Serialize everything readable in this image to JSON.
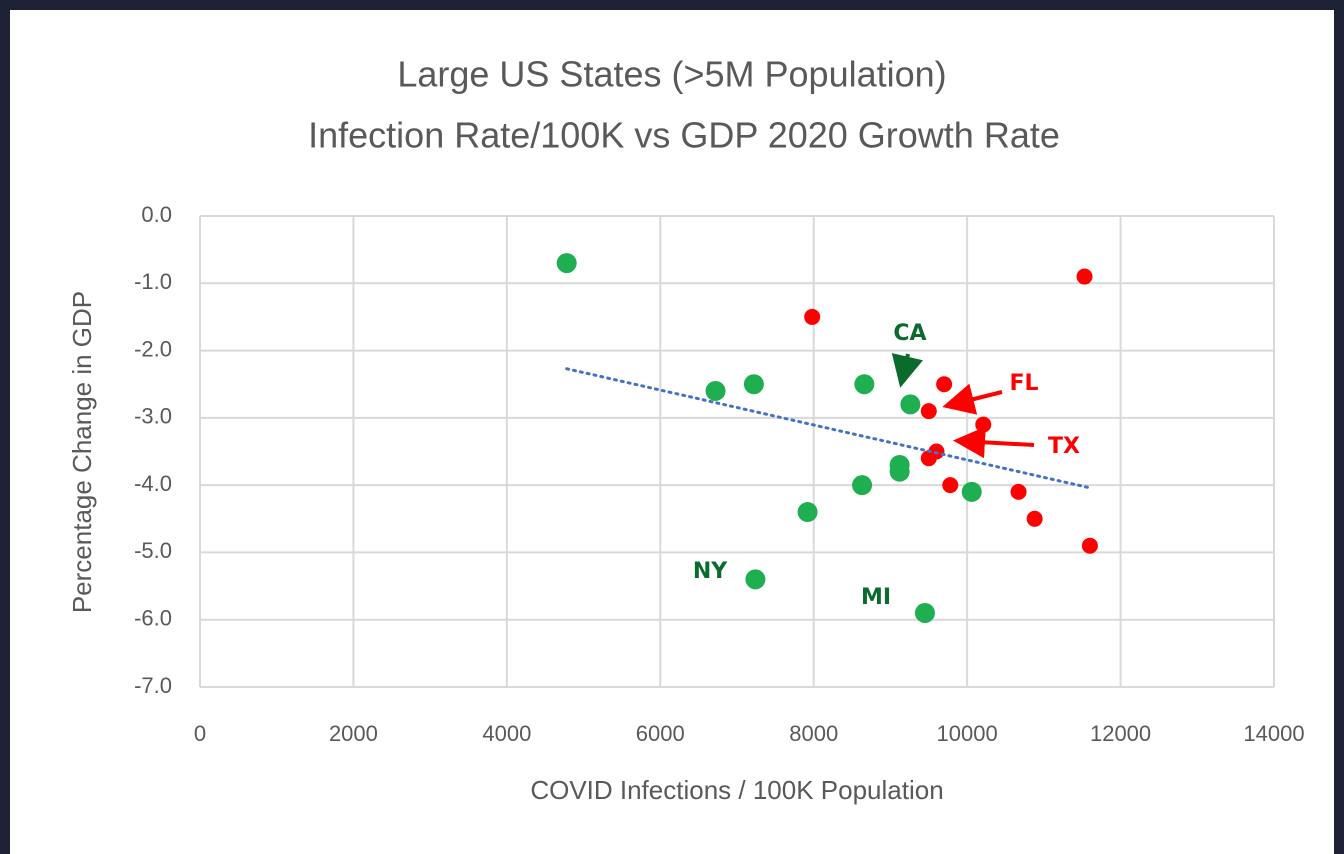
{
  "chart_data": {
    "type": "scatter",
    "title": [
      "Large US States (>5M Population)",
      "Infection Rate/100K vs GDP 2020 Growth Rate"
    ],
    "x_label": "COVID Infections / 100K Population",
    "y_label": "Percentage Change in GDP",
    "xlim": [
      0,
      14000
    ],
    "xticks": [
      0,
      2000,
      4000,
      6000,
      8000,
      10000,
      12000,
      14000
    ],
    "ylim": [
      -7,
      0
    ],
    "yticks": [
      {
        "value": 0,
        "label": "0.0"
      },
      {
        "value": -1,
        "label": "-1.0"
      },
      {
        "value": -2,
        "label": "-2.0"
      },
      {
        "value": -3,
        "label": "-3.0"
      },
      {
        "value": -4,
        "label": "-4.0"
      },
      {
        "value": -5,
        "label": "-5.0"
      },
      {
        "value": -6,
        "label": "-6.0"
      },
      {
        "value": -7,
        "label": "-7.0"
      }
    ],
    "grid": true,
    "series": [
      {
        "color": "#1fae50",
        "x": [
          4780,
          6720,
          7220,
          8660,
          9260,
          9120,
          9120,
          8630,
          7920,
          7240,
          9450,
          10060
        ],
        "values": [
          -0.7,
          -2.6,
          -2.5,
          -2.5,
          -2.8,
          -3.7,
          -3.8,
          -4.0,
          -4.4,
          -5.4,
          -5.9,
          -4.1
        ]
      },
      {
        "color": "#ff0000",
        "x": [
          7980,
          11530,
          9700,
          9500,
          10210,
          9600,
          9500,
          9780,
          10670,
          10880,
          11600
        ],
        "values": [
          -1.5,
          -0.9,
          -2.5,
          -2.9,
          -3.1,
          -3.5,
          -3.6,
          -4.0,
          -4.1,
          -4.5,
          -4.9
        ]
      }
    ],
    "trendline": {
      "color": "#4472c4",
      "x": [
        4780,
        11600
      ],
      "values": [
        -2.27,
        -4.04
      ]
    },
    "annotations": [
      {
        "text": "CA",
        "color": "#0b6b2c"
      },
      {
        "text": "FL",
        "color": "#ff0000"
      },
      {
        "text": "TX",
        "color": "#ff0000"
      },
      {
        "text": "NY",
        "color": "#0b6b2c"
      },
      {
        "text": "MI",
        "color": "#0b6b2c"
      }
    ]
  }
}
